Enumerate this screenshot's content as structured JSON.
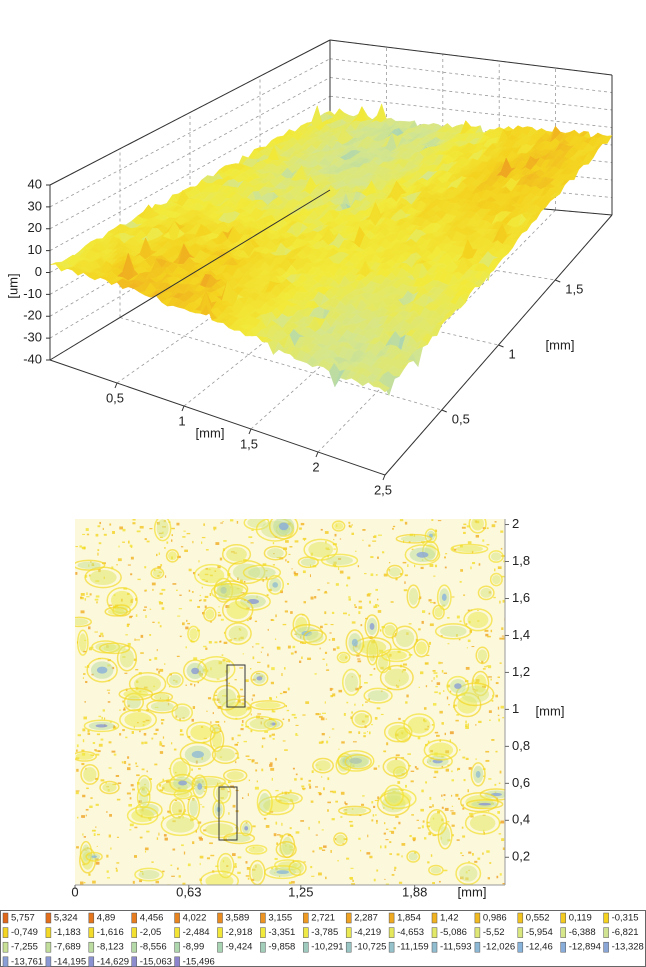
{
  "chart_data": [
    {
      "type": "surface3d",
      "zlabel": "[um]",
      "xlabel": "[mm]",
      "ylabel": "[mm]",
      "xlim": [
        0,
        2.5
      ],
      "ylim": [
        0,
        2
      ],
      "zlim": [
        -40,
        40
      ],
      "xticks": [
        {
          "value": 0.5,
          "label": "0,5"
        },
        1,
        {
          "value": 1.5,
          "label": "1,5"
        },
        2,
        {
          "value": 2.5,
          "label": "2,5"
        }
      ],
      "yticks": [
        {
          "value": 0.5,
          "label": "0,5"
        },
        1,
        {
          "value": 1.5,
          "label": "1,5"
        }
      ],
      "zticks": [
        40,
        30,
        20,
        10,
        0,
        -10,
        -20,
        -30,
        -40
      ],
      "grid": true
    },
    {
      "type": "contour",
      "xlabel": "[mm]",
      "ylabel": "[mm]",
      "xlim": [
        0,
        2.38
      ],
      "ylim": [
        0.05,
        2.03
      ],
      "xticks": [
        0,
        {
          "value": 0.63,
          "label": "0,63"
        },
        {
          "value": 1.25,
          "label": "1,25"
        },
        {
          "value": 1.88,
          "label": "1,88"
        }
      ],
      "yticks": [
        {
          "value": 0.2,
          "label": "0,2"
        },
        {
          "value": 0.4,
          "label": "0,4"
        },
        {
          "value": 0.6,
          "label": "0,6"
        },
        {
          "value": 0.8,
          "label": "0,8"
        },
        1,
        {
          "value": 1.2,
          "label": "1,2"
        },
        {
          "value": 1.4,
          "label": "1,4"
        },
        {
          "value": 1.6,
          "label": "1,6"
        },
        {
          "value": 1.8,
          "label": "1,8"
        },
        2
      ],
      "levels": [
        5.757,
        5.324,
        4.89,
        4.456,
        4.022,
        3.589,
        3.155,
        2.721,
        2.287,
        1.854,
        1.42,
        0.986,
        0.552,
        0.119,
        -0.315,
        -0.749,
        -1.183,
        -1.616,
        -2.05,
        -2.484,
        -2.918,
        -3.351,
        -3.785,
        -4.219,
        -4.653,
        -5.086,
        -5.52,
        -5.954,
        -6.388,
        -6.821,
        -7.255,
        -7.689,
        -8.123,
        -8.556,
        -8.99,
        -9.424,
        -9.858,
        -10.291,
        -10.725,
        -11.159,
        -11.593,
        -12.026,
        -12.46,
        -12.894,
        -13.328,
        -13.761,
        -14.195,
        -14.629,
        -15.063,
        -15.496
      ],
      "level_labels": [
        "5,757",
        "5,324",
        "4,89",
        "4,456",
        "4,022",
        "3,589",
        "3,155",
        "2,721",
        "2,287",
        "1,854",
        "1,42",
        "0,986",
        "0,552",
        "0,119",
        "-0,315",
        "-0,749",
        "-1,183",
        "-1,616",
        "-2,05",
        "-2,484",
        "-2,918",
        "-3,351",
        "-3,785",
        "-4,219",
        "-4,653",
        "-5,086",
        "-5,52",
        "-5,954",
        "-6,388",
        "-6,821",
        "-7,255",
        "-7,689",
        "-8,123",
        "-8,556",
        "-8,99",
        "-9,424",
        "-9,858",
        "-10,291",
        "-10,725",
        "-11,159",
        "-11,593",
        "-12,026",
        "-12,46",
        "-12,894",
        "-13,328",
        "-13,761",
        "-14,195",
        "-14,629",
        "-15,063",
        "-15,496"
      ],
      "color_scale": [
        "#e0661a",
        "#ee9a22",
        "#f4d21e",
        "#f2ea3a",
        "#d6e68a",
        "#a8d4b4",
        "#88b4dc",
        "#8c84cc"
      ]
    }
  ]
}
